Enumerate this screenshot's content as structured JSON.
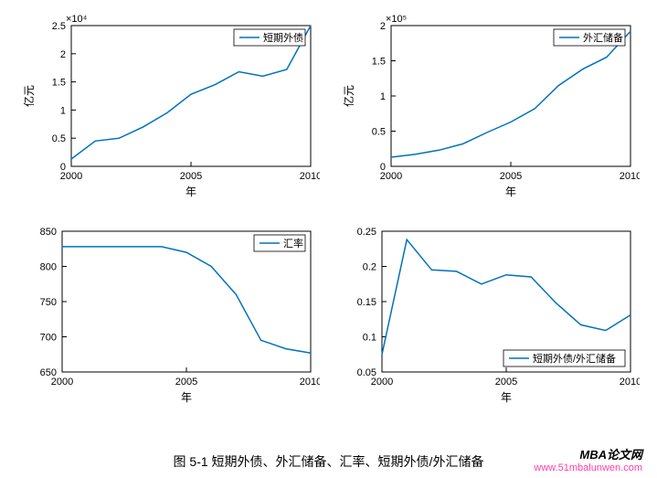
{
  "figure_caption": "图 5-1 短期外债、外汇储备、汇率、短期外债/外汇储备",
  "credit": {
    "line1": "MBA论文网",
    "line2": "www.51mbalunwen.com"
  },
  "colors": {
    "line": "#0072bd",
    "axis": "#000000",
    "bg": "#ffffff",
    "credit_pink": "#ff3ea5"
  },
  "panels": [
    {
      "id": "p1",
      "legend": "短期外债",
      "legend_pos": "top-right",
      "xlabel": "年",
      "ylabel": "亿元",
      "mult_label": "×10⁴",
      "xlim": [
        2000,
        2010
      ],
      "ylim": [
        0,
        2.5
      ],
      "xticks": [
        2000,
        2005,
        2010
      ],
      "yticks": [
        0,
        0.5,
        1,
        1.5,
        2,
        2.5
      ],
      "x": [
        2000,
        2001,
        2002,
        2003,
        2004,
        2005,
        2006,
        2007,
        2008,
        2009,
        2010
      ],
      "y": [
        0.13,
        0.45,
        0.5,
        0.7,
        0.95,
        1.28,
        1.45,
        1.68,
        1.6,
        1.72,
        2.5
      ]
    },
    {
      "id": "p2",
      "legend": "外汇储备",
      "legend_pos": "top-right",
      "xlabel": "年",
      "ylabel": "亿元",
      "mult_label": "×10⁵",
      "xlim": [
        2000,
        2010
      ],
      "ylim": [
        0,
        2.0
      ],
      "xticks": [
        2000,
        2005,
        2010
      ],
      "yticks": [
        0,
        0.5,
        1,
        1.5,
        2
      ],
      "x": [
        2000,
        2001,
        2002,
        2003,
        2004,
        2005,
        2006,
        2007,
        2008,
        2009,
        2010
      ],
      "y": [
        0.13,
        0.17,
        0.23,
        0.32,
        0.48,
        0.63,
        0.82,
        1.15,
        1.38,
        1.55,
        1.92
      ]
    },
    {
      "id": "p3",
      "legend": "汇率",
      "legend_pos": "top-right",
      "xlabel": "年",
      "ylabel": "",
      "mult_label": "",
      "xlim": [
        2000,
        2010
      ],
      "ylim": [
        650,
        850
      ],
      "xticks": [
        2000,
        2005,
        2010
      ],
      "yticks": [
        650,
        700,
        750,
        800,
        850
      ],
      "x": [
        2000,
        2001,
        2002,
        2003,
        2004,
        2005,
        2006,
        2007,
        2008,
        2009,
        2010
      ],
      "y": [
        828,
        828,
        828,
        828,
        828,
        820,
        800,
        760,
        695,
        683,
        677
      ]
    },
    {
      "id": "p4",
      "legend": "短期外债/外汇储备",
      "legend_pos": "bottom-right",
      "xlabel": "年",
      "ylabel": "",
      "mult_label": "",
      "xlim": [
        2000,
        2010
      ],
      "ylim": [
        0.05,
        0.25
      ],
      "xticks": [
        2000,
        2005,
        2010
      ],
      "yticks": [
        0.05,
        0.1,
        0.15,
        0.2,
        0.25
      ],
      "x": [
        2000,
        2001,
        2002,
        2003,
        2004,
        2005,
        2006,
        2007,
        2008,
        2009,
        2010
      ],
      "y": [
        0.075,
        0.238,
        0.195,
        0.193,
        0.175,
        0.188,
        0.185,
        0.148,
        0.117,
        0.109,
        0.131
      ]
    }
  ]
}
